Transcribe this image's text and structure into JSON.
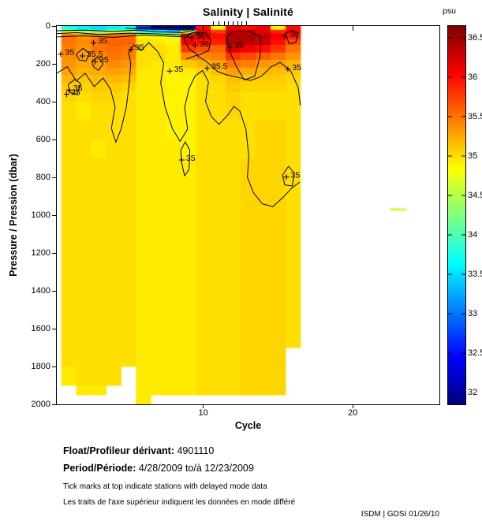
{
  "title": "Salinity | Salinité",
  "colors": {
    "background": "#ffffff",
    "contour": "#000000",
    "text": "#000000",
    "axis": "#000000"
  },
  "footer": {
    "float_label": "Float/Profileur dérivant:",
    "float_value": "4901110",
    "period_label": "Period/Période:",
    "period_value": "4/28/2009  to/à  12/23/2009",
    "note_en": "Tick marks at top indicate stations with delayed mode data",
    "note_fr": "Les traits de l'axe supérieur indiquent les données en mode différé",
    "credit": "ISDM | GDSI  01/26/10"
  },
  "chart_data": {
    "type": "heatmap",
    "title": "Salinity | Salinité",
    "xlabel": "Cycle",
    "ylabel": "Pressure / Pression (dbar)",
    "colorbar_label": "psu",
    "xlim": [
      0.2,
      25.8
    ],
    "ylim": [
      0,
      2000
    ],
    "x_ticks": [
      10,
      20
    ],
    "y_ticks": [
      0,
      200,
      400,
      600,
      800,
      1000,
      1200,
      1400,
      1600,
      1800,
      2000
    ],
    "y_axis_inverted": true,
    "grid": false,
    "colorbar": {
      "min": 31.85,
      "max": 36.65,
      "ticks": [
        32,
        32.5,
        33,
        33.5,
        34,
        34.5,
        35,
        35.5,
        36,
        36.5
      ],
      "colormap": "jet"
    },
    "cycles": [
      1,
      2,
      3,
      4,
      5,
      6,
      7,
      8,
      9,
      10,
      11,
      12,
      13,
      14,
      15,
      16
    ],
    "pressure_edges": [
      0,
      20,
      40,
      70,
      100,
      140,
      180,
      220,
      260,
      300,
      350,
      400,
      500,
      600,
      700,
      800,
      900,
      1000,
      1200,
      1400,
      1600,
      1700,
      1800,
      1900,
      1950,
      2000
    ],
    "salinity_grid": [
      [
        33.8,
        34.6,
        35.5,
        35.5,
        35.45,
        35.4,
        35.35,
        35.3,
        35.2,
        35.1,
        35.05,
        35.0,
        35.0,
        35.0,
        35.0,
        35.0,
        35.0,
        35.0,
        35.0,
        35.0,
        35.0,
        35.0,
        34.95,
        null,
        null
      ],
      [
        33.6,
        34.4,
        35.35,
        35.4,
        35.35,
        35.3,
        35.25,
        35.2,
        35.1,
        35.05,
        35.0,
        34.95,
        35.0,
        35.0,
        35.0,
        35.0,
        35.0,
        35.0,
        35.0,
        35.0,
        35.0,
        35.0,
        35.0,
        34.95,
        null
      ],
      [
        33.5,
        34.3,
        35.45,
        35.5,
        35.5,
        35.4,
        35.3,
        35.25,
        35.15,
        35.1,
        35.05,
        35.0,
        35.0,
        34.95,
        35.0,
        35.0,
        35.0,
        35.0,
        35.0,
        35.0,
        35.0,
        35.0,
        35.0,
        34.95,
        null
      ],
      [
        33.6,
        34.5,
        35.55,
        35.6,
        35.55,
        35.5,
        35.4,
        35.3,
        35.2,
        35.1,
        35.05,
        35.0,
        35.0,
        35.0,
        35.0,
        35.0,
        35.0,
        35.0,
        35.0,
        35.0,
        35.0,
        35.0,
        35.0,
        null,
        null
      ],
      [
        33.7,
        34.4,
        35.55,
        35.6,
        35.5,
        35.45,
        35.35,
        35.25,
        35.15,
        35.05,
        35.0,
        35.0,
        35.0,
        35.0,
        35.0,
        35.0,
        35.0,
        35.0,
        35.0,
        35.0,
        35.0,
        35.0,
        null,
        null,
        null
      ],
      [
        32.8,
        33.8,
        34.9,
        35.0,
        35.0,
        35.0,
        35.0,
        34.95,
        34.95,
        34.95,
        34.95,
        34.95,
        34.95,
        34.95,
        34.95,
        34.95,
        34.95,
        34.95,
        34.95,
        34.95,
        34.95,
        34.95,
        34.95,
        34.95,
        34.95
      ],
      [
        32.5,
        33.6,
        34.8,
        34.95,
        35.0,
        35.0,
        34.95,
        34.95,
        34.95,
        34.95,
        34.95,
        34.95,
        34.95,
        34.95,
        34.95,
        34.95,
        34.95,
        34.95,
        34.95,
        34.95,
        34.95,
        34.95,
        34.95,
        34.95,
        null
      ],
      [
        32.4,
        33.4,
        34.7,
        34.9,
        34.95,
        34.95,
        34.95,
        34.9,
        34.9,
        34.9,
        34.9,
        34.9,
        34.9,
        34.95,
        34.95,
        34.95,
        34.95,
        34.95,
        34.95,
        34.95,
        34.95,
        34.95,
        34.95,
        34.95,
        null
      ],
      [
        32.1,
        34.5,
        36.0,
        36.1,
        35.8,
        35.4,
        35.1,
        34.95,
        34.9,
        34.9,
        34.9,
        34.9,
        34.9,
        34.9,
        34.95,
        34.95,
        34.95,
        34.95,
        34.95,
        34.95,
        34.95,
        34.95,
        34.95,
        34.95,
        null
      ],
      [
        36.0,
        36.15,
        36.25,
        36.0,
        35.7,
        35.4,
        35.2,
        35.05,
        35.0,
        35.0,
        35.0,
        35.0,
        35.0,
        35.0,
        35.0,
        35.0,
        35.0,
        35.0,
        35.0,
        35.0,
        35.0,
        35.0,
        35.0,
        35.0,
        null
      ],
      [
        34.9,
        35.8,
        36.0,
        35.9,
        35.6,
        35.45,
        35.3,
        35.15,
        35.05,
        35.0,
        35.0,
        35.0,
        35.0,
        35.0,
        35.0,
        35.0,
        35.0,
        35.0,
        35.0,
        35.0,
        35.0,
        35.0,
        35.0,
        35.0,
        null
      ],
      [
        36.1,
        36.3,
        36.4,
        36.45,
        36.2,
        35.8,
        35.5,
        35.3,
        35.15,
        35.1,
        35.05,
        35.05,
        35.0,
        35.0,
        35.0,
        35.0,
        35.0,
        35.0,
        35.0,
        35.0,
        35.0,
        35.0,
        35.0,
        35.0,
        null
      ],
      [
        36.0,
        36.3,
        36.45,
        36.4,
        36.1,
        35.7,
        35.45,
        35.25,
        35.1,
        35.05,
        35.0,
        35.0,
        35.0,
        35.0,
        35.05,
        35.05,
        35.05,
        35.05,
        35.05,
        35.05,
        35.05,
        35.05,
        35.05,
        35.05,
        null
      ],
      [
        36.1,
        36.2,
        36.35,
        36.3,
        36.0,
        35.6,
        35.35,
        35.2,
        35.1,
        35.05,
        35.0,
        35.0,
        35.05,
        35.05,
        35.05,
        35.05,
        35.05,
        35.05,
        35.05,
        35.05,
        35.05,
        35.05,
        35.05,
        35.05,
        null
      ],
      [
        34.9,
        35.9,
        36.1,
        36.0,
        35.8,
        35.5,
        35.3,
        35.15,
        35.1,
        35.05,
        35.0,
        35.0,
        35.05,
        35.05,
        35.05,
        35.05,
        35.05,
        35.05,
        35.05,
        35.05,
        35.05,
        35.05,
        35.05,
        35.05,
        null
      ],
      [
        36.0,
        36.05,
        35.9,
        35.7,
        35.5,
        35.35,
        35.2,
        35.1,
        35.05,
        35.0,
        35.0,
        35.0,
        35.0,
        35.0,
        35.0,
        35.0,
        35.0,
        35.0,
        35.0,
        35.0,
        35.0,
        null,
        null,
        null,
        null
      ]
    ],
    "isolated_segment": {
      "cycle_start": 22.5,
      "cycle_end": 23.6,
      "pressure": 970,
      "value": 34.6
    },
    "delayed_mode_tick_cycles": [
      10.7,
      11.05,
      11.4,
      11.7,
      12.0,
      12.3,
      12.6,
      12.9
    ],
    "contours": [
      {
        "level": "35",
        "points": [
          [
            0.2,
            250
          ],
          [
            0.9,
            215
          ],
          [
            1.5,
            290
          ],
          [
            2.1,
            250
          ],
          [
            2.7,
            320
          ],
          [
            3.3,
            275
          ],
          [
            3.8,
            335
          ],
          [
            4.1,
            430
          ],
          [
            3.85,
            540
          ],
          [
            4.15,
            615
          ],
          [
            4.5,
            545
          ],
          [
            4.85,
            430
          ],
          [
            5.05,
            300
          ],
          [
            5.15,
            195
          ],
          [
            5.0,
            140
          ],
          [
            5.35,
            100
          ],
          [
            5.85,
            130
          ],
          [
            6.35,
            88
          ],
          [
            6.95,
            135
          ],
          [
            7.35,
            195
          ],
          [
            7.15,
            300
          ],
          [
            7.45,
            430
          ],
          [
            7.95,
            545
          ],
          [
            8.45,
            610
          ],
          [
            8.95,
            545
          ],
          [
            8.75,
            430
          ],
          [
            9.05,
            330
          ],
          [
            9.45,
            265
          ],
          [
            9.95,
            235
          ],
          [
            10.35,
            295
          ],
          [
            10.15,
            400
          ],
          [
            10.55,
            480
          ],
          [
            11.05,
            520
          ],
          [
            11.65,
            470
          ],
          [
            12.05,
            425
          ],
          [
            12.45,
            450
          ],
          [
            12.85,
            545
          ],
          [
            13.05,
            690
          ],
          [
            12.95,
            800
          ],
          [
            13.35,
            880
          ],
          [
            13.95,
            940
          ],
          [
            14.65,
            955
          ],
          [
            15.35,
            905
          ],
          [
            15.95,
            855
          ],
          [
            16.45,
            825
          ]
        ]
      },
      {
        "level": "34.9",
        "points": [
          [
            0.2,
            58
          ],
          [
            2,
            52
          ],
          [
            4,
            60
          ],
          [
            6,
            48
          ],
          [
            8,
            55
          ],
          [
            9.2,
            60
          ],
          [
            9.6,
            40
          ]
        ]
      },
      {
        "level": "34.5",
        "points": [
          [
            0.2,
            40
          ],
          [
            1.5,
            35
          ],
          [
            3,
            45
          ],
          [
            5,
            38
          ],
          [
            7,
            42
          ],
          [
            8.8,
            48
          ],
          [
            9.5,
            30
          ]
        ]
      },
      {
        "level": "34",
        "points": [
          [
            0.2,
            25
          ],
          [
            2,
            22
          ],
          [
            4,
            28
          ],
          [
            5.5,
            22
          ],
          [
            7,
            30
          ],
          [
            8.6,
            35
          ],
          [
            9.4,
            22
          ]
        ]
      },
      {
        "level": "33.5",
        "points": [
          [
            4.8,
            12
          ],
          [
            6,
            15
          ],
          [
            7.5,
            18
          ],
          [
            8.8,
            22
          ],
          [
            9.4,
            15
          ]
        ]
      },
      {
        "level": "33",
        "points": [
          [
            5.5,
            6
          ],
          [
            7,
            8
          ],
          [
            8.5,
            12
          ],
          [
            9.3,
            8
          ]
        ]
      },
      {
        "level": "32.5",
        "points": [
          [
            6.5,
            3
          ],
          [
            8,
            5
          ],
          [
            9.2,
            4
          ]
        ]
      },
      {
        "level": "36",
        "points": [
          [
            8.7,
            70
          ],
          [
            9.2,
            38
          ],
          [
            10.15,
            34
          ],
          [
            10.5,
            75
          ],
          [
            10.35,
            130
          ],
          [
            9.7,
            155
          ],
          [
            9.1,
            125
          ],
          [
            8.7,
            70
          ]
        ]
      },
      {
        "level": "36",
        "points": [
          [
            11.55,
            60
          ],
          [
            11.95,
            30
          ],
          [
            13.15,
            28
          ],
          [
            13.85,
            60
          ],
          [
            13.8,
            160
          ],
          [
            13.45,
            265
          ],
          [
            12.75,
            285
          ],
          [
            12.25,
            220
          ],
          [
            11.8,
            140
          ],
          [
            11.55,
            60
          ]
        ]
      },
      {
        "level": "36",
        "points": [
          [
            15.5,
            40
          ],
          [
            15.95,
            22
          ],
          [
            16.35,
            38
          ],
          [
            16.2,
            85
          ],
          [
            15.75,
            95
          ],
          [
            15.5,
            40
          ]
        ]
      },
      {
        "level": "35.5",
        "points": [
          [
            8.85,
            175
          ],
          [
            9.55,
            155
          ],
          [
            10.25,
            190
          ],
          [
            10.95,
            240
          ],
          [
            11.55,
            258
          ],
          [
            12.35,
            272
          ],
          [
            13.15,
            288
          ],
          [
            13.85,
            268
          ],
          [
            14.55,
            215
          ],
          [
            15.15,
            192
          ],
          [
            15.85,
            238
          ],
          [
            16.35,
            325
          ],
          [
            16.5,
            420
          ]
        ]
      },
      {
        "level": "35.5",
        "points": [
          [
            1.5,
            150
          ],
          [
            1.95,
            118
          ],
          [
            2.4,
            145
          ],
          [
            2.15,
            185
          ],
          [
            1.7,
            180
          ],
          [
            1.5,
            150
          ]
        ]
      },
      {
        "level": "35.5",
        "points": [
          [
            2.55,
            185
          ],
          [
            2.95,
            165
          ],
          [
            3.3,
            200
          ],
          [
            3.0,
            235
          ],
          [
            2.65,
            215
          ],
          [
            2.55,
            185
          ]
        ]
      },
      {
        "level": "35",
        "points": [
          [
            8.5,
            655
          ],
          [
            8.8,
            612
          ],
          [
            9.1,
            658
          ],
          [
            9.05,
            758
          ],
          [
            8.75,
            792
          ],
          [
            8.55,
            722
          ],
          [
            8.5,
            655
          ]
        ]
      },
      {
        "level": "35",
        "points": [
          [
            15.3,
            788
          ],
          [
            15.7,
            742
          ],
          [
            16.1,
            778
          ],
          [
            15.95,
            846
          ],
          [
            15.45,
            840
          ],
          [
            15.3,
            788
          ]
        ]
      },
      {
        "level": "35",
        "points": [
          [
            0.95,
            310
          ],
          [
            1.4,
            282
          ],
          [
            1.8,
            305
          ],
          [
            1.55,
            362
          ],
          [
            1.1,
            352
          ],
          [
            0.95,
            310
          ]
        ]
      }
    ],
    "contour_labels": [
      {
        "text": "35",
        "cycle": 0.75,
        "pressure": 140
      },
      {
        "text": "35.5",
        "cycle": 2.2,
        "pressure": 150
      },
      {
        "text": "35",
        "cycle": 2.95,
        "pressure": 80
      },
      {
        "text": "35",
        "cycle": 3.05,
        "pressure": 180
      },
      {
        "text": "35",
        "cycle": 5.45,
        "pressure": 115
      },
      {
        "text": "35",
        "cycle": 8.05,
        "pressure": 230
      },
      {
        "text": "36",
        "cycle": 9.5,
        "pressure": 55
      },
      {
        "text": "36",
        "cycle": 9.75,
        "pressure": 95
      },
      {
        "text": "35.5",
        "cycle": 10.55,
        "pressure": 215
      },
      {
        "text": "36",
        "cycle": 12.1,
        "pressure": 105
      },
      {
        "text": "36",
        "cycle": 15.75,
        "pressure": 45
      },
      {
        "text": "35",
        "cycle": 15.95,
        "pressure": 220
      },
      {
        "text": "35",
        "cycle": 8.85,
        "pressure": 700
      },
      {
        "text": "35",
        "cycle": 15.85,
        "pressure": 790
      },
      {
        "text": "35",
        "cycle": 1.3,
        "pressure": 330
      },
      {
        "text": "35",
        "cycle": 1.15,
        "pressure": 352
      }
    ]
  }
}
